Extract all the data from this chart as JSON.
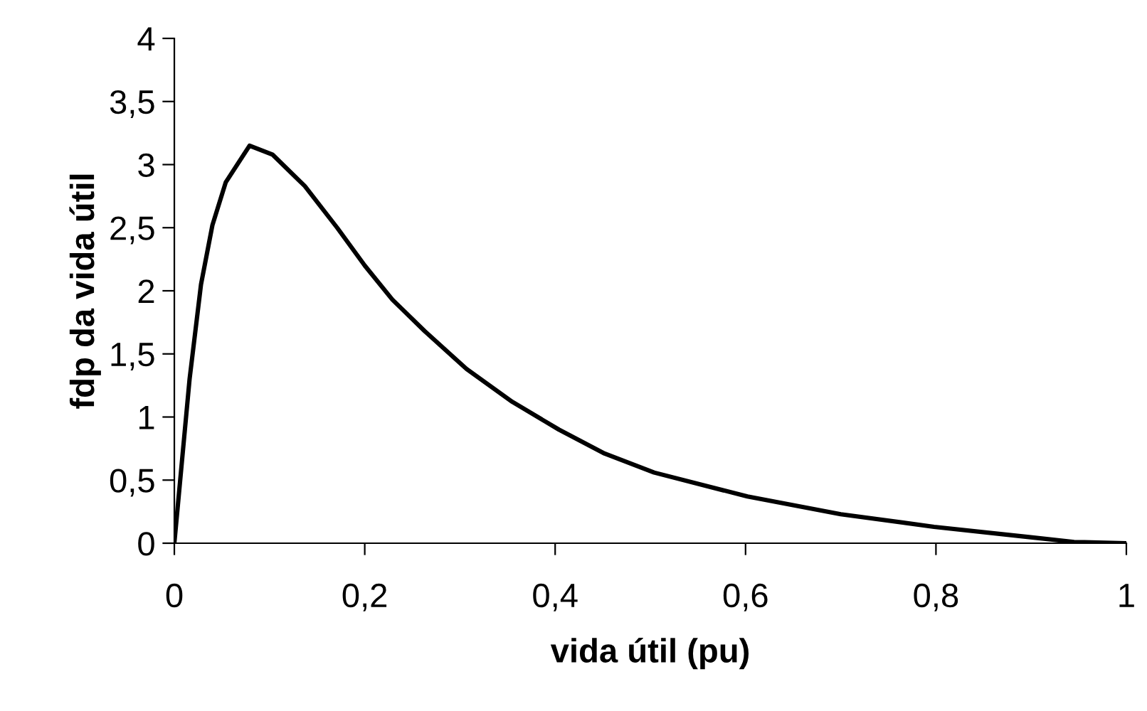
{
  "chart_data": {
    "type": "line",
    "xlabel": "vida útil (pu)",
    "ylabel": "fdp da vida útil",
    "x": [
      0,
      0.016,
      0.028,
      0.04,
      0.054,
      0.079,
      0.103,
      0.137,
      0.171,
      0.2,
      0.229,
      0.263,
      0.307,
      0.355,
      0.404,
      0.452,
      0.504,
      0.602,
      0.7,
      0.798,
      0.896,
      0.945,
      1
    ],
    "series": [
      {
        "color": "#000000",
        "values": [
          0,
          1.3,
          2.05,
          2.52,
          2.86,
          3.15,
          3.08,
          2.83,
          2.5,
          2.2,
          1.93,
          1.68,
          1.38,
          1.12,
          0.9,
          0.71,
          0.56,
          0.37,
          0.23,
          0.13,
          0.05,
          0.01,
          0
        ]
      }
    ],
    "xlim": [
      0,
      1
    ],
    "ylim": [
      0,
      4
    ],
    "xticks": [
      0,
      {
        "value": 0.2,
        "label": "0,2"
      },
      {
        "value": 0.4,
        "label": "0,4"
      },
      {
        "value": 0.6,
        "label": "0,6"
      },
      {
        "value": 0.8,
        "label": "0,8"
      },
      1
    ],
    "yticks": [
      0,
      {
        "value": 0.5,
        "label": "0,5"
      },
      1,
      {
        "value": 1.5,
        "label": "1,5"
      },
      2,
      {
        "value": 2.5,
        "label": "2,5"
      },
      3,
      {
        "value": 3.5,
        "label": "3,5"
      },
      4
    ],
    "grid": false,
    "legend": false,
    "marker": "none",
    "line_style": "solid"
  }
}
